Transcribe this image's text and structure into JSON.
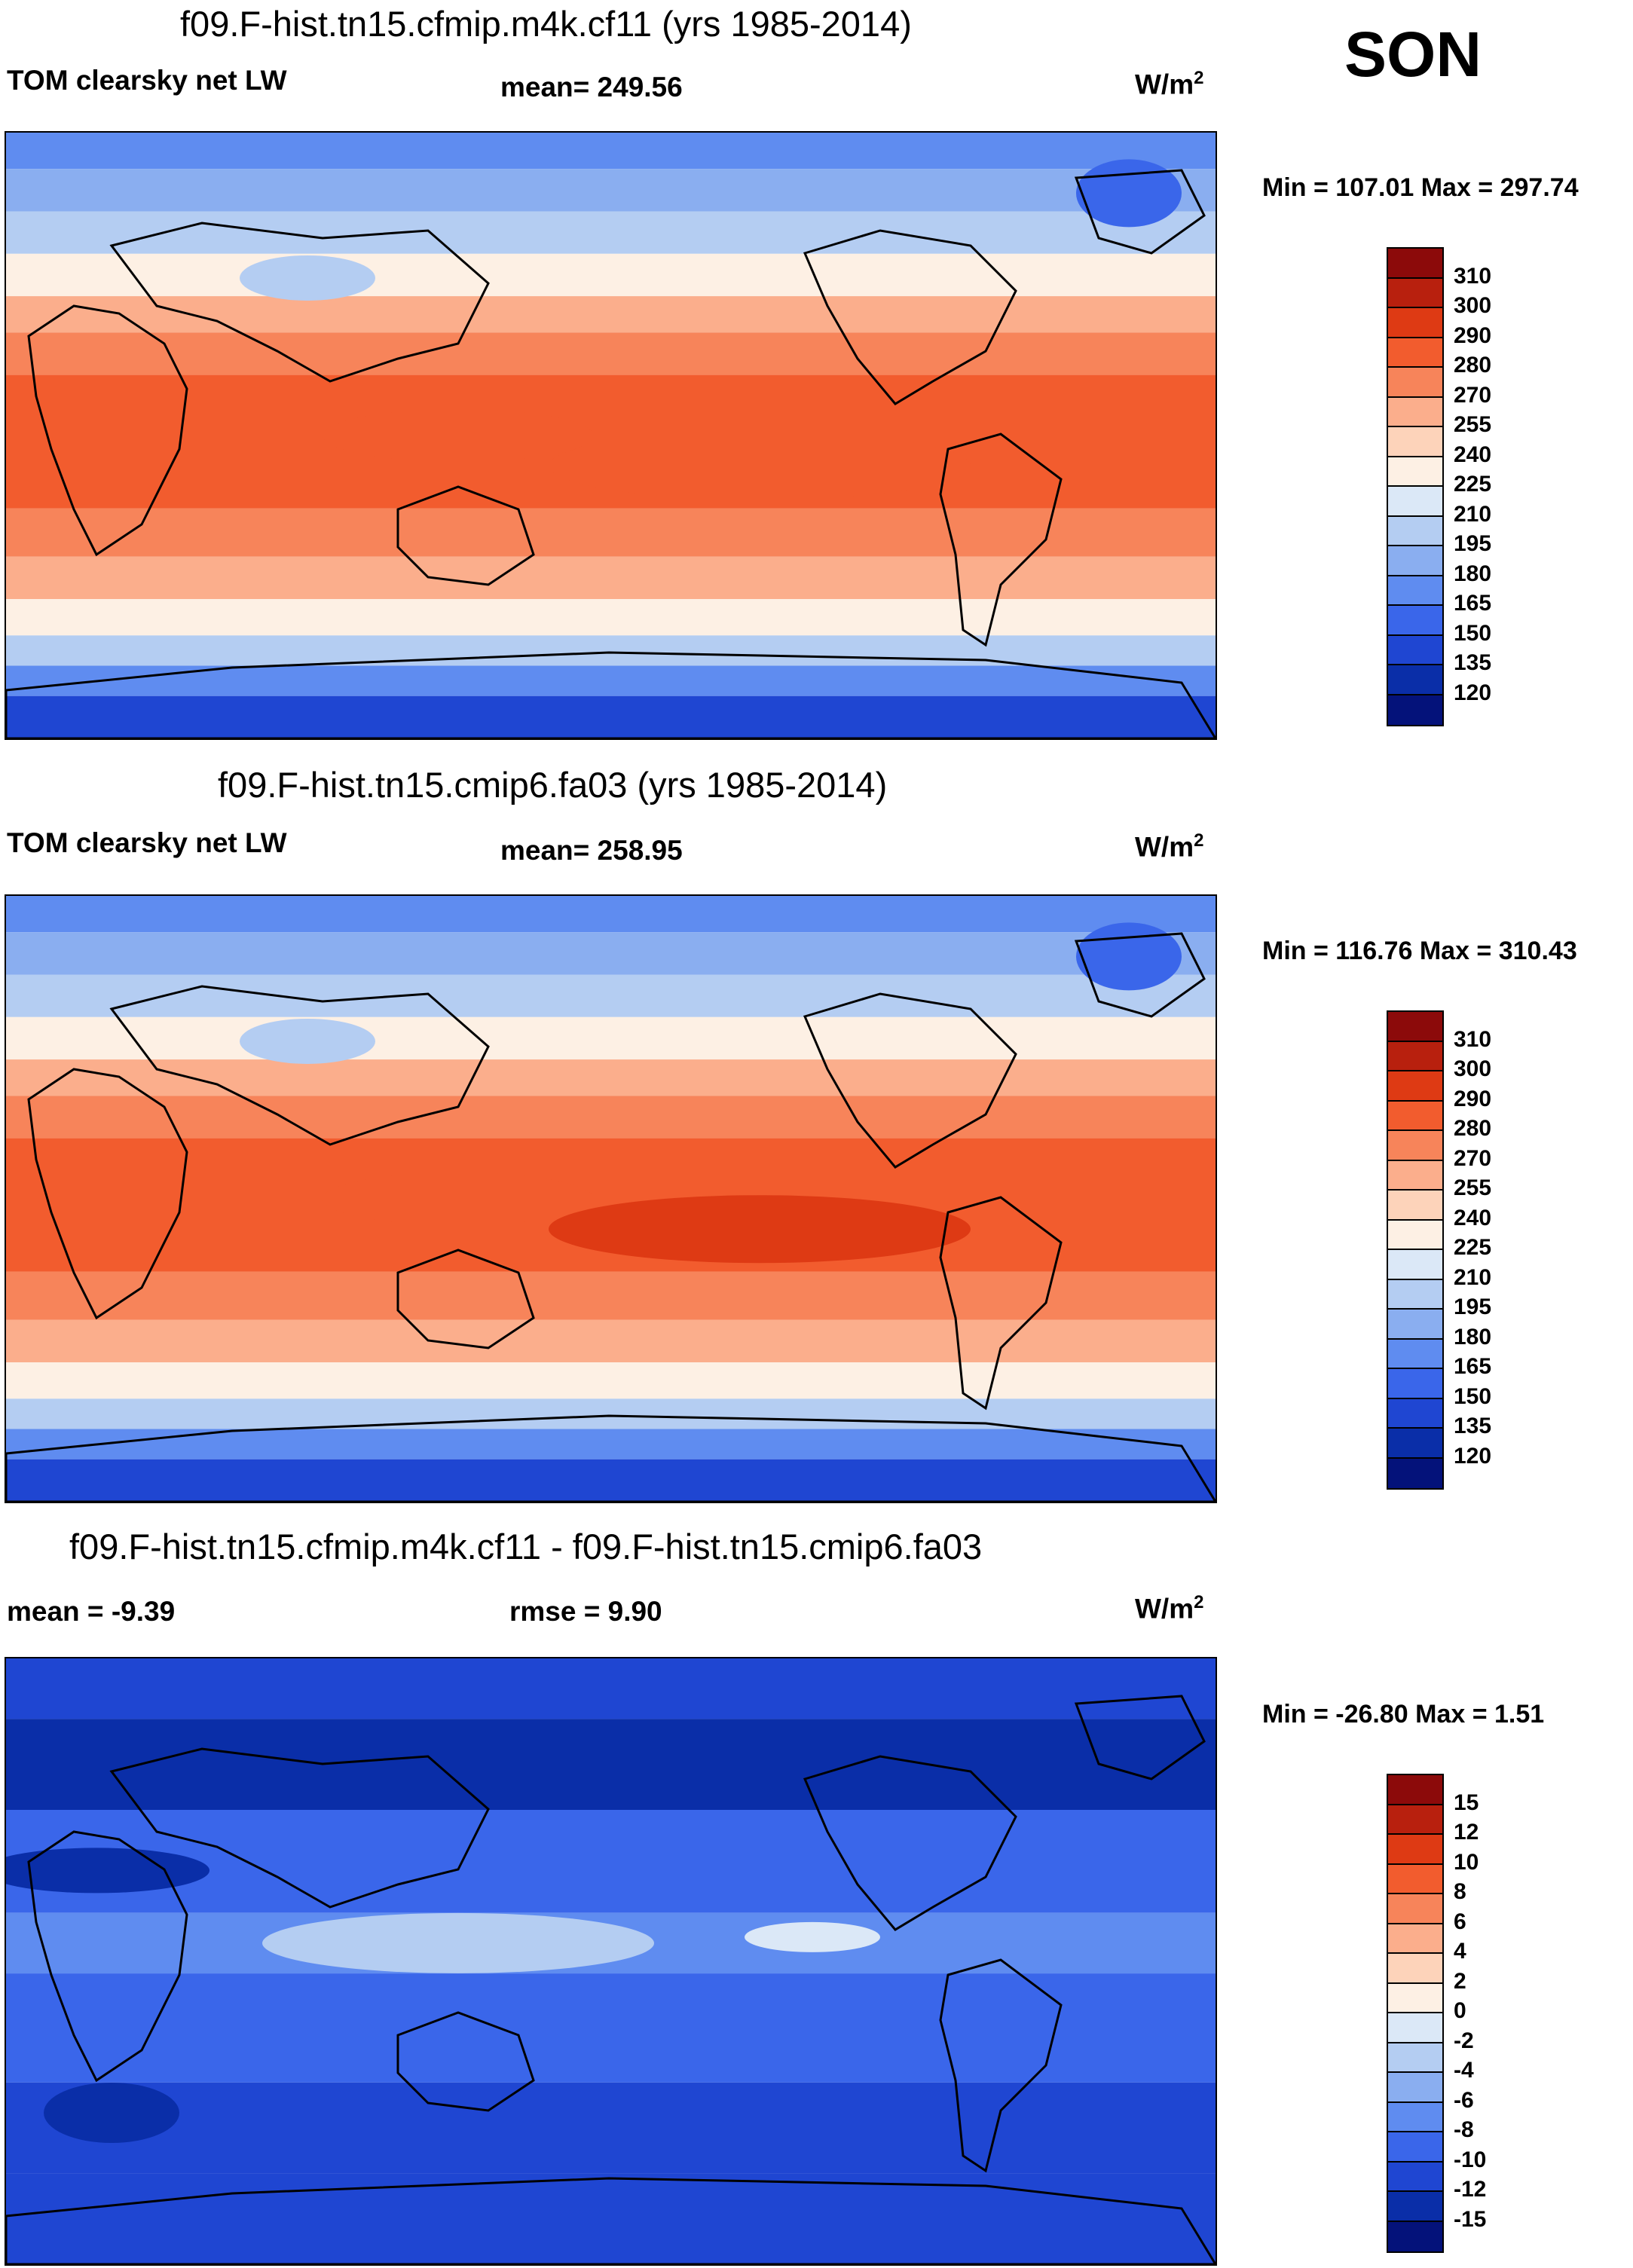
{
  "season": "SON",
  "units_prefix": "W/m",
  "units_exp": "2",
  "panels": [
    {
      "title": "f09.F-hist.tn15.cfmip.m4k.cf11 (yrs 1985-2014)",
      "variable": "TOM clearsky net LW",
      "stat1": "mean= 249.56",
      "stat2": "",
      "minmax": "Min = 107.01 Max = 297.74",
      "colorbar_labels": [
        "310",
        "300",
        "290",
        "280",
        "270",
        "255",
        "240",
        "225",
        "210",
        "195",
        "180",
        "165",
        "150",
        "135",
        "120"
      ],
      "colorbar_colors": [
        "#8c0a0a",
        "#b8200e",
        "#de3a14",
        "#f25c2e",
        "#f7845a",
        "#fbae8c",
        "#fdd3ba",
        "#fdf0e4",
        "#dbe8f7",
        "#b4cdf2",
        "#8aaef0",
        "#5f8cf0",
        "#3a66ea",
        "#1f46d2",
        "#0a2ea8",
        "#04127a"
      ]
    },
    {
      "title": "f09.F-hist.tn15.cmip6.fa03 (yrs 1985-2014)",
      "variable": "TOM clearsky net LW",
      "stat1": "mean= 258.95",
      "stat2": "",
      "minmax": "Min = 116.76 Max = 310.43",
      "colorbar_labels": [
        "310",
        "300",
        "290",
        "280",
        "270",
        "255",
        "240",
        "225",
        "210",
        "195",
        "180",
        "165",
        "150",
        "135",
        "120"
      ],
      "colorbar_colors": [
        "#8c0a0a",
        "#b8200e",
        "#de3a14",
        "#f25c2e",
        "#f7845a",
        "#fbae8c",
        "#fdd3ba",
        "#fdf0e4",
        "#dbe8f7",
        "#b4cdf2",
        "#8aaef0",
        "#5f8cf0",
        "#3a66ea",
        "#1f46d2",
        "#0a2ea8",
        "#04127a"
      ]
    },
    {
      "title": "f09.F-hist.tn15.cfmip.m4k.cf11 - f09.F-hist.tn15.cmip6.fa03",
      "variable": "mean =  -9.39",
      "stat1": "rmse =   9.90",
      "stat2": "",
      "minmax": "Min = -26.80 Max =   1.51",
      "colorbar_labels": [
        "15",
        "12",
        "10",
        "8",
        "6",
        "4",
        "2",
        "0",
        "-2",
        "-4",
        "-6",
        "-8",
        "-10",
        "-12",
        "-15"
      ],
      "colorbar_colors": [
        "#8c0a0a",
        "#b8200e",
        "#de3a14",
        "#f25c2e",
        "#f7845a",
        "#fbae8c",
        "#fdd3ba",
        "#fdf0e4",
        "#dbe8f7",
        "#b4cdf2",
        "#8aaef0",
        "#5f8cf0",
        "#3a66ea",
        "#1f46d2",
        "#0a2ea8",
        "#04127a"
      ]
    }
  ]
}
